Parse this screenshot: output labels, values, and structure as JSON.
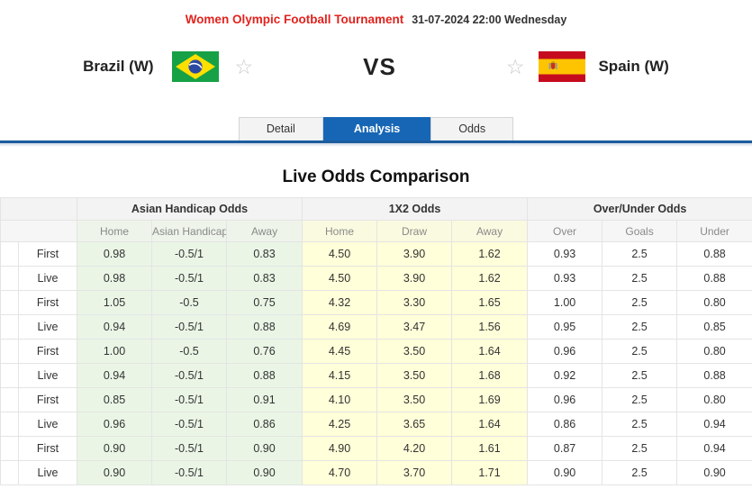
{
  "header": {
    "tournament": "Women Olympic Football Tournament",
    "datetime": "31-07-2024 22:00 Wednesday"
  },
  "match": {
    "home_name": "Brazil (W)",
    "away_name": "Spain (W)",
    "vs": "VS",
    "star_icon": "☆"
  },
  "tabs": {
    "detail": "Detail",
    "analysis": "Analysis",
    "odds": "Odds",
    "active": "Analysis"
  },
  "section_title": "Live Odds Comparison",
  "colors": {
    "title_red": "#e1231e",
    "accent_blue": "#1766b5",
    "underline_blue": "#1c5c9e",
    "asian_handicap_bg": "#eaf5e6",
    "x12_bg": "#ffffd9"
  },
  "table": {
    "groups": [
      "Asian Handicap Odds",
      "1X2 Odds",
      "Over/Under Odds"
    ],
    "sub_headers": [
      "Home",
      "Asian Handicap",
      "Away",
      "Home",
      "Draw",
      "Away",
      "Over",
      "Goals",
      "Under"
    ],
    "rows": [
      {
        "label": "First",
        "values": [
          "0.98",
          "-0.5/1",
          "0.83",
          "4.50",
          "3.90",
          "1.62",
          "0.93",
          "2.5",
          "0.88"
        ]
      },
      {
        "label": "Live",
        "values": [
          "0.98",
          "-0.5/1",
          "0.83",
          "4.50",
          "3.90",
          "1.62",
          "0.93",
          "2.5",
          "0.88"
        ]
      },
      {
        "label": "First",
        "values": [
          "1.05",
          "-0.5",
          "0.75",
          "4.32",
          "3.30",
          "1.65",
          "1.00",
          "2.5",
          "0.80"
        ]
      },
      {
        "label": "Live",
        "values": [
          "0.94",
          "-0.5/1",
          "0.88",
          "4.69",
          "3.47",
          "1.56",
          "0.95",
          "2.5",
          "0.85"
        ]
      },
      {
        "label": "First",
        "values": [
          "1.00",
          "-0.5",
          "0.76",
          "4.45",
          "3.50",
          "1.64",
          "0.96",
          "2.5",
          "0.80"
        ]
      },
      {
        "label": "Live",
        "values": [
          "0.94",
          "-0.5/1",
          "0.88",
          "4.15",
          "3.50",
          "1.68",
          "0.92",
          "2.5",
          "0.88"
        ]
      },
      {
        "label": "First",
        "values": [
          "0.85",
          "-0.5/1",
          "0.91",
          "4.10",
          "3.50",
          "1.69",
          "0.96",
          "2.5",
          "0.80"
        ]
      },
      {
        "label": "Live",
        "values": [
          "0.96",
          "-0.5/1",
          "0.86",
          "4.25",
          "3.65",
          "1.64",
          "0.86",
          "2.5",
          "0.94"
        ]
      },
      {
        "label": "First",
        "values": [
          "0.90",
          "-0.5/1",
          "0.90",
          "4.90",
          "4.20",
          "1.61",
          "0.87",
          "2.5",
          "0.94"
        ]
      },
      {
        "label": "Live",
        "values": [
          "0.90",
          "-0.5/1",
          "0.90",
          "4.70",
          "3.70",
          "1.71",
          "0.90",
          "2.5",
          "0.90"
        ]
      }
    ]
  }
}
